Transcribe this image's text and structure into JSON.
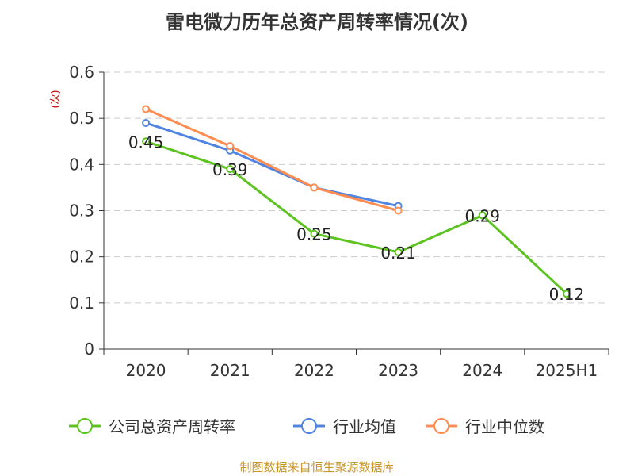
{
  "chart_data": {
    "type": "line",
    "title": "雷电微力历年总资产周转率情况(次)",
    "ylabel": "(次)",
    "ylim": [
      0,
      0.6
    ],
    "yticks": [
      "0",
      "0.1",
      "0.2",
      "0.3",
      "0.4",
      "0.5",
      "0.6"
    ],
    "categories": [
      "2020",
      "2021",
      "2022",
      "2023",
      "2024",
      "2025H1"
    ],
    "grid": true,
    "legend_position": "bottom",
    "series": [
      {
        "name": "公司总资产周转率",
        "color": "#5cc320",
        "values": [
          0.45,
          0.39,
          0.25,
          0.21,
          0.29,
          0.12
        ],
        "labels": [
          "0.45",
          "0.39",
          "0.25",
          "0.21",
          "0.29",
          "0.12"
        ]
      },
      {
        "name": "行业均值",
        "color": "#4f84e0",
        "values": [
          0.49,
          0.43,
          0.35,
          0.31,
          null,
          null
        ]
      },
      {
        "name": "行业中位数",
        "color": "#ff8c50",
        "values": [
          0.52,
          0.44,
          0.35,
          0.3,
          null,
          null
        ]
      }
    ]
  },
  "source": "制图数据来自恒生聚源数据库"
}
